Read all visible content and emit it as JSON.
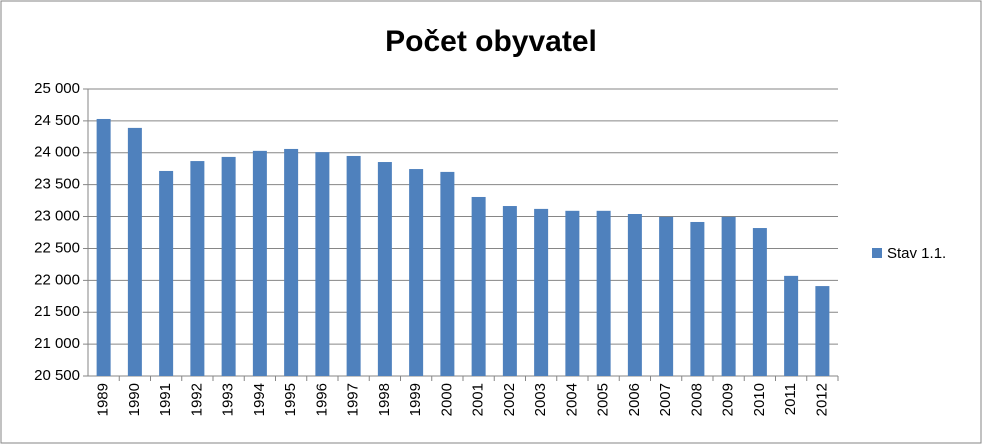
{
  "chart_data": {
    "type": "bar",
    "title": "Počet obyvatel",
    "categories": [
      "1989",
      "1990",
      "1991",
      "1992",
      "1993",
      "1994",
      "1995",
      "1996",
      "1997",
      "1998",
      "1999",
      "2000",
      "2001",
      "2002",
      "2003",
      "2004",
      "2005",
      "2006",
      "2007",
      "2008",
      "2009",
      "2010",
      "2011",
      "2012"
    ],
    "series": [
      {
        "name": "Stav 1.1.",
        "color": "#4f81bd",
        "values": [
          24530,
          24390,
          23715,
          23870,
          23935,
          24030,
          24060,
          24010,
          23950,
          23855,
          23745,
          23700,
          23307,
          23165,
          23120,
          23090,
          23090,
          23040,
          22995,
          22915,
          22995,
          22820,
          22070,
          21910
        ]
      }
    ],
    "ylim": [
      20500,
      25000
    ],
    "yticks": [
      {
        "value": 20500,
        "label": "20 500"
      },
      {
        "value": 21000,
        "label": "21 000"
      },
      {
        "value": 21500,
        "label": "21 500"
      },
      {
        "value": 22000,
        "label": "22 000"
      },
      {
        "value": 22500,
        "label": "22 500"
      },
      {
        "value": 23000,
        "label": "23 000"
      },
      {
        "value": 23500,
        "label": "23 500"
      },
      {
        "value": 24000,
        "label": "24 000"
      },
      {
        "value": 24500,
        "label": "24 500"
      },
      {
        "value": 25000,
        "label": "25 000"
      }
    ],
    "grid": true,
    "legend": "right"
  }
}
